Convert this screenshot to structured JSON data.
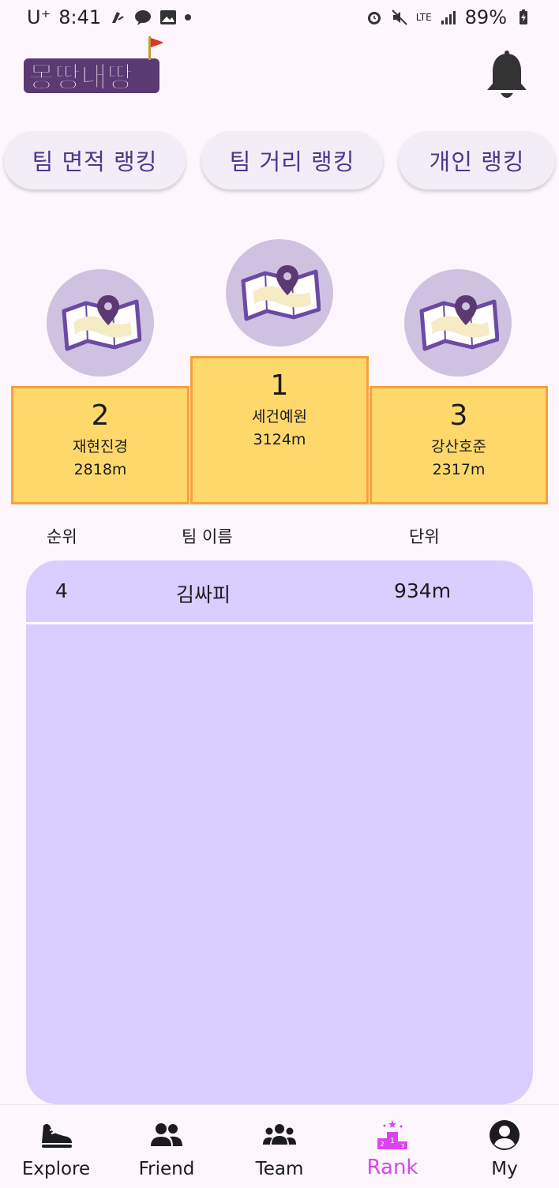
{
  "status": {
    "carrier": "U⁺",
    "time": "8:41",
    "battery": "89%",
    "network": "LTE"
  },
  "app": {
    "logo_text": "몽땅내땅"
  },
  "tabs": [
    {
      "label": "팀 면적 랭킹"
    },
    {
      "label": "팀 거리 랭킹"
    },
    {
      "label": "개인 랭킹"
    }
  ],
  "podium": {
    "first": {
      "rank": "1",
      "name": "세건예원",
      "distance": "3124m"
    },
    "second": {
      "rank": "2",
      "name": "재현진경",
      "distance": "2818m"
    },
    "third": {
      "rank": "3",
      "name": "강산호준",
      "distance": "2317m"
    }
  },
  "table": {
    "headers": {
      "rank": "순위",
      "team": "팀 이름",
      "unit": "단위"
    },
    "rows": [
      {
        "rank": "4",
        "team": "김싸피",
        "distance": "934m"
      }
    ]
  },
  "nav": {
    "items": [
      {
        "label": "Explore",
        "icon": "shoe-icon"
      },
      {
        "label": "Friend",
        "icon": "people-icon"
      },
      {
        "label": "Team",
        "icon": "group-icon"
      },
      {
        "label": "Rank",
        "icon": "podium-icon"
      },
      {
        "label": "My",
        "icon": "account-icon"
      }
    ],
    "active": "Rank"
  },
  "colors": {
    "accent": "#d946ef",
    "tab_text": "#4f378b",
    "podium_fill": "#ffd86b",
    "podium_border": "#f7a03a",
    "list_bg": "#dacdff",
    "avatar_bg": "#cfc2e0"
  }
}
